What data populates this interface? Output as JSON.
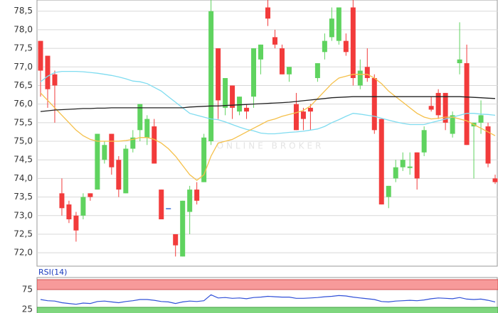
{
  "chart_data": {
    "type": "candlestick",
    "watermark": "ONLINE BROKER",
    "up_color": "#5fd35f",
    "down_color": "#f23b3b",
    "doji_color": "#3b6fd6",
    "open": [
      77.7,
      77.3,
      76.8,
      73.6,
      73.3,
      73.0,
      73.0,
      73.6,
      73.7,
      74.5,
      75.2,
      74.5,
      73.6,
      74.8,
      75.3,
      75.1,
      75.4,
      73.7,
      73.2,
      72.5,
      71.9,
      73.1,
      73.7,
      73.9,
      75.0,
      77.5,
      75.9,
      76.5,
      75.8,
      75.9,
      76.2,
      77.2,
      78.6,
      77.8,
      77.5,
      76.8,
      76.0,
      75.8,
      75.9,
      76.7,
      77.4,
      77.8,
      77.7,
      77.7,
      78.6,
      76.5,
      77.0,
      76.7,
      75.6,
      73.5,
      74.0,
      74.3,
      74.28,
      74.7,
      74.7,
      75.95,
      76.3,
      76.3,
      75.2,
      77.1,
      77.1,
      75.4,
      75.5,
      75.4,
      74.0
    ],
    "high": [
      77.7,
      77.3,
      76.9,
      74.0,
      73.4,
      73.1,
      73.6,
      73.6,
      75.2,
      75.0,
      75.2,
      74.6,
      74.9,
      75.3,
      76.0,
      75.7,
      75.6,
      73.7,
      73.2,
      72.5,
      73.4,
      73.8,
      73.9,
      75.2,
      78.8,
      77.5,
      76.7,
      76.5,
      76.2,
      76.0,
      77.5,
      77.6,
      78.8,
      78.0,
      77.6,
      77.0,
      76.3,
      75.9,
      76.0,
      77.1,
      77.9,
      78.6,
      78.6,
      77.9,
      78.8,
      77.2,
      77.5,
      76.8,
      75.6,
      73.8,
      74.5,
      74.7,
      74.7,
      74.7,
      75.4,
      76.2,
      76.4,
      76.3,
      75.8,
      78.2,
      77.6,
      75.5,
      76.1,
      75.5,
      74.1
    ],
    "low": [
      76.2,
      75.9,
      75.5,
      73.0,
      72.8,
      72.3,
      72.9,
      73.4,
      73.7,
      74.4,
      74.1,
      73.5,
      73.6,
      74.7,
      75.0,
      74.9,
      74.4,
      72.9,
      73.2,
      71.9,
      71.9,
      72.5,
      73.3,
      73.9,
      74.9,
      75.6,
      75.7,
      75.6,
      75.7,
      75.6,
      75.9,
      76.8,
      78.1,
      77.5,
      76.8,
      76.6,
      75.3,
      75.3,
      75.3,
      76.6,
      77.2,
      77.7,
      77.6,
      77.3,
      76.5,
      76.4,
      76.6,
      75.2,
      73.3,
      73.2,
      73.9,
      74.2,
      74.1,
      73.7,
      74.6,
      75.8,
      75.6,
      75.3,
      75.1,
      76.8,
      74.9,
      74.0,
      75.2,
      74.3,
      73.85
    ],
    "close": [
      76.9,
      76.4,
      76.5,
      73.2,
      72.9,
      72.6,
      73.5,
      73.5,
      75.2,
      74.9,
      74.3,
      73.7,
      74.8,
      75.1,
      76.0,
      75.6,
      74.4,
      72.9,
      73.2,
      72.2,
      73.4,
      73.7,
      73.4,
      75.1,
      78.5,
      76.1,
      76.7,
      75.9,
      76.2,
      75.8,
      77.5,
      77.6,
      78.3,
      77.6,
      76.8,
      77.0,
      75.3,
      75.6,
      75.8,
      77.1,
      77.7,
      78.3,
      78.6,
      77.4,
      76.7,
      76.9,
      76.7,
      75.3,
      73.3,
      73.8,
      74.3,
      74.5,
      74.32,
      74.0,
      75.3,
      75.85,
      75.7,
      75.5,
      75.7,
      77.2,
      74.9,
      75.5,
      75.7,
      74.4,
      73.9
    ],
    "ma_series": [
      {
        "color": "#7fdcf0",
        "values": [
          76.6,
          76.75,
          76.85,
          76.88,
          76.88,
          76.88,
          76.87,
          76.85,
          76.83,
          76.8,
          76.77,
          76.73,
          76.68,
          76.62,
          76.6,
          76.55,
          76.45,
          76.35,
          76.2,
          76.05,
          75.9,
          75.75,
          75.7,
          75.65,
          75.6,
          75.58,
          75.52,
          75.45,
          75.38,
          75.32,
          75.28,
          75.22,
          75.2,
          75.2,
          75.22,
          75.24,
          75.25,
          75.27,
          75.3,
          75.33,
          75.4,
          75.5,
          75.58,
          75.67,
          75.75,
          75.73,
          75.7,
          75.67,
          75.62,
          75.57,
          75.52,
          75.48,
          75.45,
          75.45,
          75.45,
          75.5,
          75.55,
          75.6,
          75.65,
          75.7,
          75.75,
          75.75,
          75.73,
          75.72,
          75.7
        ]
      },
      {
        "color": "#f5c04a",
        "values": [
          76.3,
          76.1,
          75.9,
          75.7,
          75.5,
          75.3,
          75.15,
          75.05,
          75.0,
          75.0,
          75.0,
          75.0,
          75.02,
          75.05,
          75.1,
          75.1,
          75.05,
          74.95,
          74.8,
          74.6,
          74.35,
          74.1,
          73.95,
          74.1,
          74.6,
          74.95,
          75.0,
          75.05,
          75.15,
          75.25,
          75.35,
          75.45,
          75.55,
          75.6,
          75.67,
          75.72,
          75.77,
          75.83,
          75.95,
          76.15,
          76.35,
          76.55,
          76.7,
          76.75,
          76.8,
          76.8,
          76.8,
          76.7,
          76.55,
          76.35,
          76.2,
          76.05,
          75.9,
          75.75,
          75.65,
          75.6,
          75.62,
          75.65,
          75.65,
          75.6,
          75.55,
          75.45,
          75.35,
          75.25,
          75.15
        ]
      },
      {
        "color": "#222222",
        "values": [
          75.8,
          75.82,
          75.84,
          75.85,
          75.86,
          75.87,
          75.88,
          75.88,
          75.89,
          75.89,
          75.9,
          75.9,
          75.9,
          75.9,
          75.9,
          75.9,
          75.9,
          75.9,
          75.9,
          75.9,
          75.9,
          75.92,
          75.93,
          75.94,
          75.95,
          75.95,
          75.96,
          75.97,
          75.98,
          75.99,
          76.0,
          76.01,
          76.02,
          76.03,
          76.04,
          76.05,
          76.07,
          76.09,
          76.11,
          76.13,
          76.15,
          76.17,
          76.18,
          76.19,
          76.2,
          76.2,
          76.2,
          76.2,
          76.2,
          76.2,
          76.2,
          76.2,
          76.2,
          76.2,
          76.2,
          76.2,
          76.2,
          76.2,
          76.2,
          76.2,
          76.19,
          76.18,
          76.17,
          76.16,
          76.15
        ]
      }
    ],
    "ylim": [
      71.64,
      78.8
    ],
    "yticks": [
      {
        "value": 72,
        "label": "72,0"
      },
      {
        "value": 72.5,
        "label": "72,5"
      },
      {
        "value": 73,
        "label": "73,0"
      },
      {
        "value": 73.5,
        "label": "73,5"
      },
      {
        "value": 74,
        "label": "74,0"
      },
      {
        "value": 74.5,
        "label": "74,5"
      },
      {
        "value": 75,
        "label": "75,0"
      },
      {
        "value": 75.5,
        "label": "75,5"
      },
      {
        "value": 76,
        "label": "76,0"
      },
      {
        "value": 76.5,
        "label": "76,5"
      },
      {
        "value": 77,
        "label": "77,0"
      },
      {
        "value": 77.5,
        "label": "77,5"
      },
      {
        "value": 78,
        "label": "78,0"
      },
      {
        "value": 78.5,
        "label": "78,5"
      }
    ],
    "grid": true,
    "rsi": {
      "label": "RSI(14)",
      "color": "#3050d8",
      "overbought": 75,
      "oversold": 25,
      "overbought_color": "#f79a9a",
      "oversold_color": "#7fd67f",
      "ylim": [
        0,
        100
      ],
      "yticks": [
        75,
        25
      ],
      "values": [
        50,
        47,
        46,
        42,
        40,
        38,
        41,
        40,
        45,
        46,
        44,
        42,
        45,
        47,
        50,
        50,
        48,
        45,
        44,
        40,
        44,
        46,
        45,
        47,
        62,
        54,
        55,
        53,
        54,
        52,
        55,
        56,
        58,
        57,
        56,
        56,
        53,
        53,
        54,
        55,
        57,
        58,
        60,
        59,
        56,
        54,
        52,
        50,
        45,
        44,
        46,
        47,
        48,
        47,
        49,
        52,
        54,
        53,
        52,
        55,
        51,
        50,
        51,
        48,
        44
      ]
    }
  }
}
